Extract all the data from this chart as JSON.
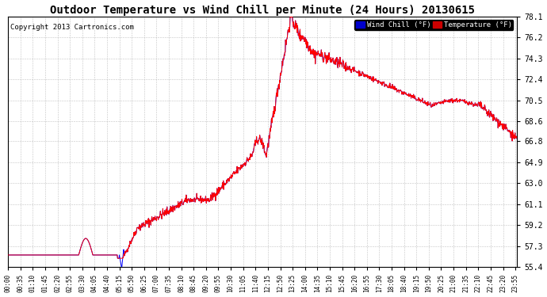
{
  "title": "Outdoor Temperature vs Wind Chill per Minute (24 Hours) 20130615",
  "copyright": "Copyright 2013 Cartronics.com",
  "legend_wind_chill": "Wind Chill (°F)",
  "legend_temperature": "Temperature (°F)",
  "ylim": [
    55.4,
    78.1
  ],
  "yticks": [
    55.4,
    57.3,
    59.2,
    61.1,
    63.0,
    64.9,
    66.8,
    68.6,
    70.5,
    72.4,
    74.3,
    76.2,
    78.1
  ],
  "color_temp": "#ff0000",
  "color_wind": "#0000ff",
  "background_color": "#ffffff",
  "grid_color": "#aaaaaa",
  "title_fontsize": 10,
  "copyright_fontsize": 6.5,
  "legend_bg_wind": "#0000cc",
  "legend_bg_temp": "#cc0000",
  "tick_interval": 35
}
